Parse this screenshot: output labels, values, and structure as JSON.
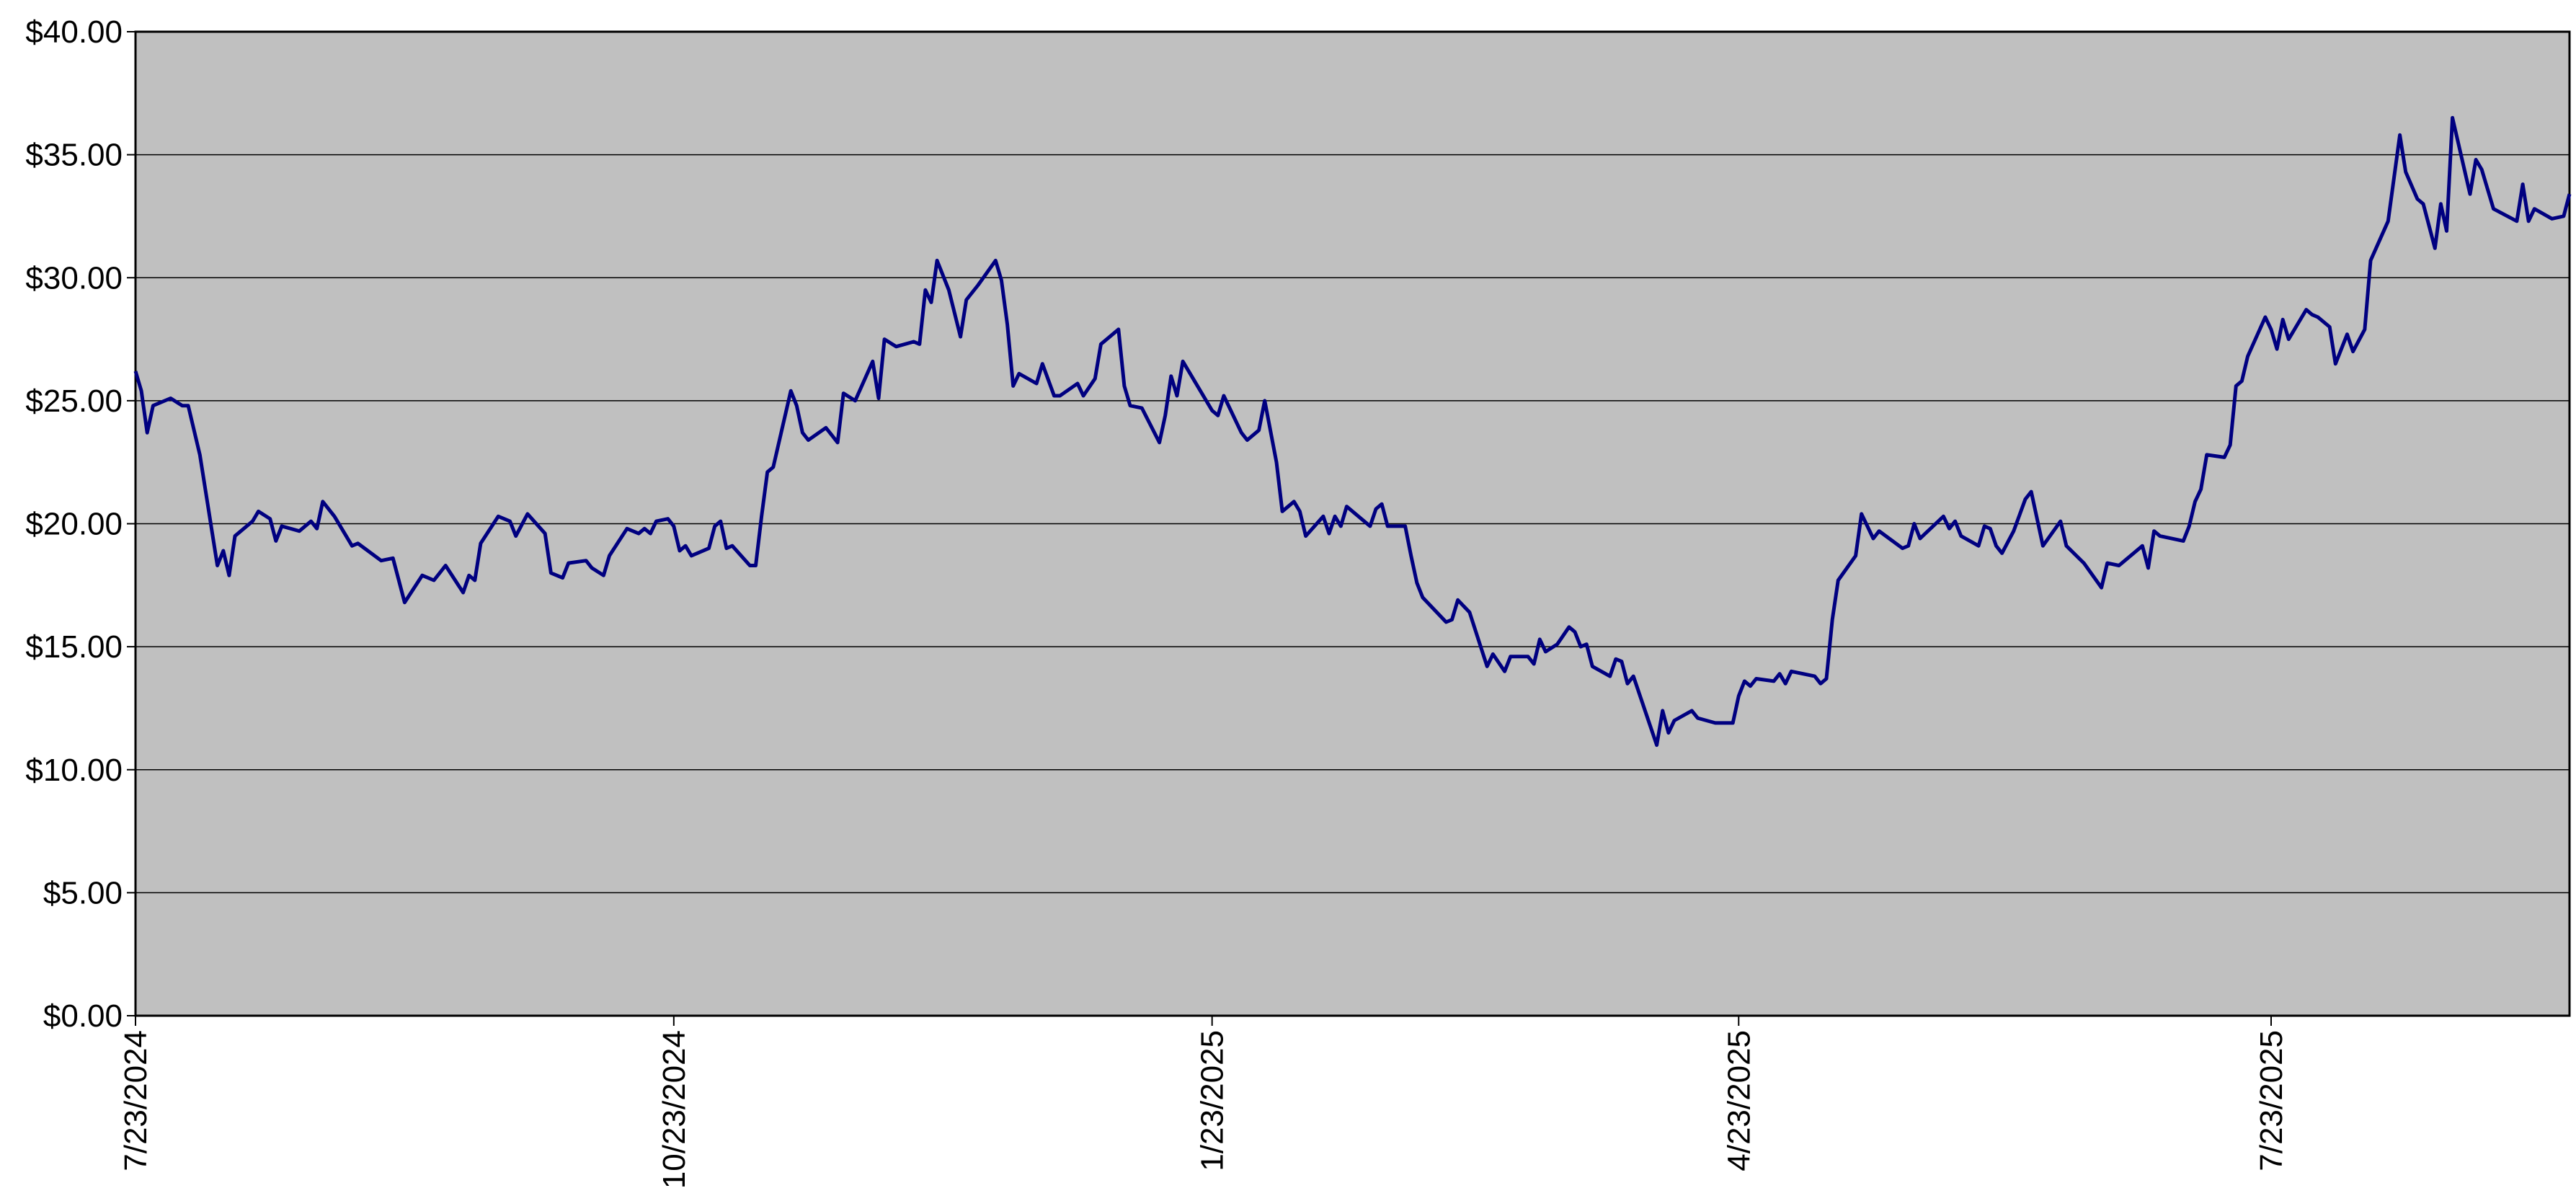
{
  "chart_data": {
    "type": "line",
    "color": "#000080",
    "grid": true,
    "xlim": [
      "2024-07-23",
      "2025-09-12"
    ],
    "xticks": [
      {
        "value": "2024-07-23",
        "label": "7/23/2024"
      },
      {
        "value": "2024-10-23",
        "label": "10/23/2024"
      },
      {
        "value": "2025-01-23",
        "label": "1/23/2025"
      },
      {
        "value": "2025-04-23",
        "label": "4/23/2025"
      },
      {
        "value": "2025-07-23",
        "label": "7/23/2025"
      }
    ],
    "ylim": [
      0,
      40
    ],
    "yticks": [
      {
        "value": 0,
        "label": "$0.00"
      },
      {
        "value": 5,
        "label": "$5.00"
      },
      {
        "value": 10,
        "label": "$10.00"
      },
      {
        "value": 15,
        "label": "$15.00"
      },
      {
        "value": 20,
        "label": "$20.00"
      },
      {
        "value": 25,
        "label": "$25.00"
      },
      {
        "value": 30,
        "label": "$30.00"
      },
      {
        "value": 35,
        "label": "$35.00"
      },
      {
        "value": 40,
        "label": "$40.00"
      }
    ],
    "x": [
      "2024-07-23",
      "2024-07-24",
      "2024-07-25",
      "2024-07-26",
      "2024-07-29",
      "2024-07-31",
      "2024-08-01",
      "2024-08-03",
      "2024-08-06",
      "2024-08-07",
      "2024-08-08",
      "2024-08-09",
      "2024-08-12",
      "2024-08-13",
      "2024-08-15",
      "2024-08-16",
      "2024-08-17",
      "2024-08-20",
      "2024-08-22",
      "2024-08-23",
      "2024-08-24",
      "2024-08-26",
      "2024-08-29",
      "2024-08-30",
      "2024-09-03",
      "2024-09-05",
      "2024-09-07",
      "2024-09-10",
      "2024-09-12",
      "2024-09-14",
      "2024-09-17",
      "2024-09-18",
      "2024-09-19",
      "2024-09-20",
      "2024-09-23",
      "2024-09-25",
      "2024-09-26",
      "2024-09-28",
      "2024-10-01",
      "2024-10-02",
      "2024-10-04",
      "2024-10-05",
      "2024-10-08",
      "2024-10-09",
      "2024-10-11",
      "2024-10-12",
      "2024-10-15",
      "2024-10-17",
      "2024-10-18",
      "2024-10-19",
      "2024-10-20",
      "2024-10-22",
      "2024-10-23",
      "2024-10-24",
      "2024-10-25",
      "2024-10-26",
      "2024-10-29",
      "2024-10-30",
      "2024-10-31",
      "2024-11-01",
      "2024-11-02",
      "2024-11-05",
      "2024-11-06",
      "2024-11-07",
      "2024-11-08",
      "2024-11-09",
      "2024-11-12",
      "2024-11-13",
      "2024-11-14",
      "2024-11-15",
      "2024-11-18",
      "2024-11-19",
      "2024-11-20",
      "2024-11-21",
      "2024-11-23",
      "2024-11-26",
      "2024-11-27",
      "2024-11-28",
      "2024-11-30",
      "2024-12-03",
      "2024-12-04",
      "2024-12-05",
      "2024-12-06",
      "2024-12-07",
      "2024-12-09",
      "2024-12-11",
      "2024-12-12",
      "2024-12-14",
      "2024-12-17",
      "2024-12-18",
      "2024-12-19",
      "2024-12-20",
      "2024-12-21",
      "2024-12-24",
      "2024-12-25",
      "2024-12-27",
      "2024-12-28",
      "2024-12-31",
      "2025-01-01",
      "2025-01-03",
      "2025-01-04",
      "2025-01-07",
      "2025-01-08",
      "2025-01-09",
      "2025-01-11",
      "2025-01-14",
      "2025-01-15",
      "2025-01-16",
      "2025-01-17",
      "2025-01-18",
      "2025-01-23",
      "2025-01-24",
      "2025-01-25",
      "2025-01-28",
      "2025-01-29",
      "2025-01-31",
      "2025-02-01",
      "2025-02-03",
      "2025-02-04",
      "2025-02-06",
      "2025-02-07",
      "2025-02-08",
      "2025-02-11",
      "2025-02-12",
      "2025-02-13",
      "2025-02-14",
      "2025-02-15",
      "2025-02-19",
      "2025-02-20",
      "2025-02-21",
      "2025-02-22",
      "2025-02-25",
      "2025-02-26",
      "2025-02-27",
      "2025-02-28",
      "2025-03-04",
      "2025-03-05",
      "2025-03-06",
      "2025-03-08",
      "2025-03-11",
      "2025-03-12",
      "2025-03-14",
      "2025-03-15",
      "2025-03-18",
      "2025-03-19",
      "2025-03-20",
      "2025-03-21",
      "2025-03-23",
      "2025-03-25",
      "2025-03-26",
      "2025-03-27",
      "2025-03-28",
      "2025-03-29",
      "2025-04-01",
      "2025-04-02",
      "2025-04-03",
      "2025-04-04",
      "2025-04-05",
      "2025-04-09",
      "2025-04-10",
      "2025-04-11",
      "2025-04-12",
      "2025-04-15",
      "2025-04-16",
      "2025-04-19",
      "2025-04-22",
      "2025-04-23",
      "2025-04-24",
      "2025-04-25",
      "2025-04-26",
      "2025-04-29",
      "2025-04-30",
      "2025-05-01",
      "2025-05-02",
      "2025-05-06",
      "2025-05-07",
      "2025-05-08",
      "2025-05-09",
      "2025-05-10",
      "2025-05-13",
      "2025-05-14",
      "2025-05-16",
      "2025-05-17",
      "2025-05-21",
      "2025-05-22",
      "2025-05-23",
      "2025-05-24",
      "2025-05-28",
      "2025-05-29",
      "2025-05-30",
      "2025-05-31",
      "2025-06-03",
      "2025-06-04",
      "2025-06-05",
      "2025-06-06",
      "2025-06-07",
      "2025-06-09",
      "2025-06-11",
      "2025-06-12",
      "2025-06-14",
      "2025-06-17",
      "2025-06-18",
      "2025-06-21",
      "2025-06-24",
      "2025-06-25",
      "2025-06-27",
      "2025-06-28",
      "2025-07-01",
      "2025-07-02",
      "2025-07-03",
      "2025-07-04",
      "2025-07-08",
      "2025-07-09",
      "2025-07-10",
      "2025-07-11",
      "2025-07-12",
      "2025-07-15",
      "2025-07-16",
      "2025-07-17",
      "2025-07-18",
      "2025-07-19",
      "2025-07-22",
      "2025-07-23",
      "2025-07-24",
      "2025-07-25",
      "2025-07-26",
      "2025-07-29",
      "2025-07-30",
      "2025-07-31",
      "2025-08-02",
      "2025-08-03",
      "2025-08-05",
      "2025-08-06",
      "2025-08-08",
      "2025-08-09",
      "2025-08-12",
      "2025-08-14",
      "2025-08-15",
      "2025-08-17",
      "2025-08-18",
      "2025-08-20",
      "2025-08-21",
      "2025-08-22",
      "2025-08-23",
      "2025-08-26",
      "2025-08-27",
      "2025-08-28",
      "2025-08-30",
      "2025-09-03",
      "2025-09-04",
      "2025-09-05",
      "2025-09-06",
      "2025-09-09",
      "2025-09-11",
      "2025-09-12"
    ],
    "values": [
      26.2,
      25.4,
      23.7,
      24.8,
      25.1,
      24.8,
      24.8,
      22.8,
      18.3,
      18.9,
      17.9,
      19.5,
      20.1,
      20.5,
      20.2,
      19.3,
      19.9,
      19.7,
      20.1,
      19.8,
      20.9,
      20.3,
      19.1,
      19.2,
      18.5,
      18.6,
      16.8,
      17.9,
      17.7,
      18.3,
      17.2,
      17.9,
      17.7,
      19.2,
      20.3,
      20.1,
      19.5,
      20.4,
      19.6,
      18.0,
      17.8,
      18.4,
      18.5,
      18.2,
      17.9,
      18.7,
      19.8,
      19.6,
      19.8,
      19.6,
      20.1,
      20.2,
      19.9,
      18.9,
      19.1,
      18.7,
      19.0,
      19.9,
      20.1,
      19.0,
      19.1,
      18.3,
      18.3,
      20.3,
      22.1,
      22.3,
      25.4,
      24.8,
      23.7,
      23.4,
      23.9,
      23.6,
      23.3,
      25.3,
      25.0,
      26.6,
      25.1,
      27.5,
      27.2,
      27.4,
      27.3,
      29.5,
      29.0,
      30.7,
      29.5,
      27.6,
      29.1,
      29.7,
      30.7,
      29.9,
      28.1,
      25.6,
      26.1,
      25.7,
      26.5,
      25.2,
      25.2,
      25.7,
      25.2,
      25.9,
      27.3,
      27.9,
      25.6,
      24.8,
      24.7,
      23.3,
      24.4,
      26.0,
      25.2,
      26.6,
      24.6,
      24.4,
      25.2,
      23.7,
      23.4,
      23.8,
      25.0,
      22.5,
      20.5,
      20.9,
      20.5,
      19.5,
      20.3,
      19.6,
      20.3,
      19.9,
      20.7,
      19.9,
      20.6,
      20.8,
      19.9,
      19.9,
      18.7,
      17.6,
      17.0,
      16.0,
      16.1,
      16.9,
      16.4,
      14.2,
      14.7,
      14.0,
      14.6,
      14.6,
      14.3,
      15.3,
      14.8,
      15.1,
      15.8,
      15.6,
      15.0,
      15.1,
      14.2,
      13.8,
      14.5,
      14.4,
      13.5,
      13.8,
      11.0,
      12.4,
      11.5,
      12.0,
      12.4,
      12.1,
      11.9,
      11.9,
      13.0,
      13.6,
      13.4,
      13.7,
      13.6,
      13.9,
      13.5,
      14.0,
      13.8,
      13.5,
      13.7,
      16.1,
      17.7,
      18.7,
      20.4,
      19.4,
      19.7,
      19.0,
      19.1,
      20.0,
      19.4,
      20.3,
      19.8,
      20.1,
      19.5,
      19.1,
      19.9,
      19.8,
      19.1,
      18.8,
      19.7,
      21.0,
      21.3,
      19.1,
      20.1,
      19.1,
      18.4,
      17.4,
      18.4,
      18.3,
      18.5,
      19.1,
      18.2,
      19.7,
      19.5,
      19.3,
      19.9,
      20.9,
      21.4,
      22.8,
      22.7,
      23.2,
      25.6,
      25.8,
      26.8,
      28.4,
      27.9,
      27.1,
      28.3,
      27.5,
      28.7,
      28.5,
      28.4,
      28.0,
      26.5,
      27.7,
      27.0,
      27.9,
      30.7,
      32.3,
      35.8,
      34.3,
      33.2,
      33.0,
      31.2,
      33.0,
      31.9,
      36.5,
      33.4,
      34.8,
      34.4,
      32.8,
      32.3,
      33.8,
      32.3,
      32.8,
      32.4,
      32.5,
      33.4
    ]
  }
}
